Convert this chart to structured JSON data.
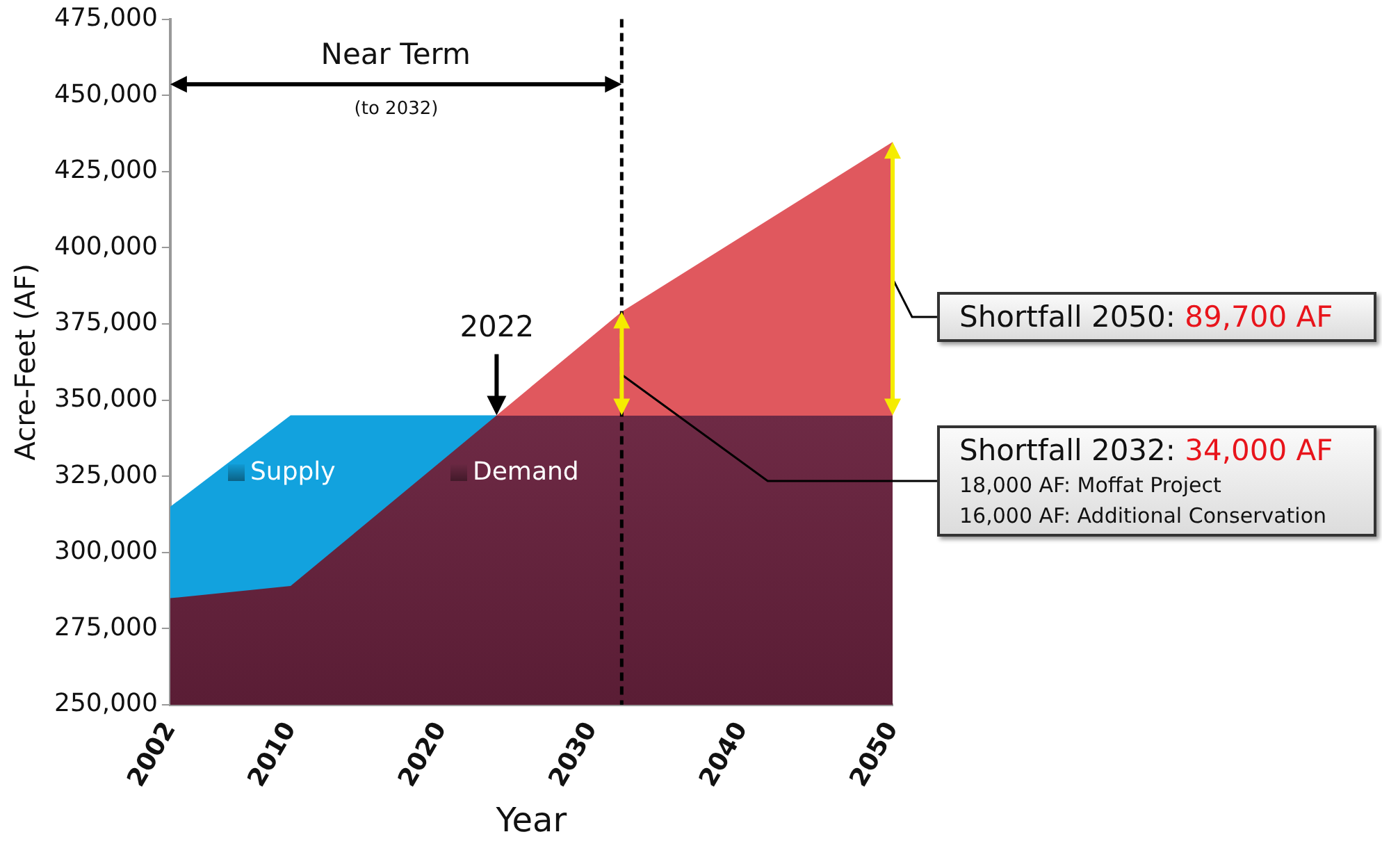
{
  "chart_data": {
    "type": "area",
    "xlabel": "Year",
    "ylabel": "Acre-Feet (AF)",
    "x": [
      2002,
      2010,
      2032,
      2050
    ],
    "series": [
      {
        "name": "Supply",
        "color": "#12a2de",
        "x": [
          2002,
          2010,
          2050
        ],
        "values": [
          315000,
          345000,
          345000
        ]
      },
      {
        "name": "Demand",
        "color": "#6e2a45",
        "values": [
          285000,
          289000,
          379000,
          434700
        ]
      }
    ],
    "xlim": [
      2002,
      2050
    ],
    "xticks": [
      2002,
      2010,
      2020,
      2030,
      2040,
      2050
    ],
    "ylim": [
      250000,
      475000
    ],
    "yticks": [
      {
        "value": 250000,
        "label": "250,000"
      },
      {
        "value": 275000,
        "label": "275,000"
      },
      {
        "value": 300000,
        "label": "300,000"
      },
      {
        "value": 325000,
        "label": "325,000"
      },
      {
        "value": 350000,
        "label": "350,000"
      },
      {
        "value": 375000,
        "label": "375,000"
      },
      {
        "value": 400000,
        "label": "400,000"
      },
      {
        "value": 425000,
        "label": "425,000"
      },
      {
        "value": 450000,
        "label": "450,000"
      },
      {
        "value": 475000,
        "label": "475,000"
      }
    ],
    "ref_lines": [
      {
        "axis": "x",
        "value": 2032,
        "color": "#000000",
        "line_style": "dashed"
      }
    ],
    "annotations": [
      "Near Term",
      "(to 2032)",
      "2022",
      "Shortfall 2050: 89,700 AF",
      "Shortfall 2032: 34,000 AF",
      "18,000 AF: Moffat Project",
      "16,000 AF: Additional Conservation"
    ],
    "grid": false,
    "legend": "left"
  }
}
